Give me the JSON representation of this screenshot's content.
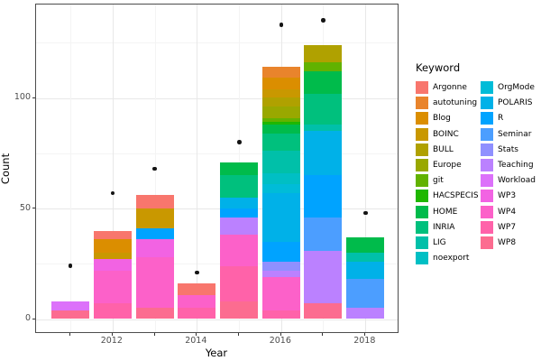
{
  "legend": {
    "title": "Keyword",
    "columns": [
      [
        "Argonne",
        "autotuning",
        "Blog",
        "BOINC",
        "BULL",
        "Europe",
        "git",
        "HACSPECIS",
        "HOME",
        "INRIA",
        "LIG",
        "noexport"
      ],
      [
        "OrgMode",
        "POLARIS",
        "R",
        "Seminar",
        "Stats",
        "Teaching",
        "Workload",
        "WP3",
        "WP4",
        "WP7",
        "WP8"
      ]
    ]
  },
  "colors": {
    "Argonne": "#F8766D",
    "autotuning": "#E9842C",
    "Blog": "#DB8E00",
    "BOINC": "#C99800",
    "BULL": "#B0A100",
    "Europe": "#99A800",
    "git": "#62B200",
    "HACSPECIS": "#1FB700",
    "HOME": "#00BB4B",
    "INRIA": "#00C07D",
    "LIG": "#00C0A9",
    "noexport": "#00BFC4",
    "OrgMode": "#00BCD8",
    "POLARIS": "#00B1E8",
    "R": "#00A3FF",
    "Seminar": "#4C9EFF",
    "Stats": "#8F90FF",
    "Teaching": "#BB81FF",
    "Workload": "#DC71FA",
    "WP3": "#F263E3",
    "WP4": "#FC61C9",
    "WP7": "#FF62A9",
    "WP8": "#FC6C90"
  },
  "chart_data": {
    "type": "bar",
    "subtype": "stacked-bars-with-point-overlay",
    "title": "",
    "xlabel": "Year",
    "ylabel": "Count",
    "x_years": [
      2011,
      2012,
      2013,
      2014,
      2015,
      2016,
      2017,
      2018
    ],
    "x_tick_labels": [
      "2012",
      "2014",
      "2016",
      "2018"
    ],
    "y_tick_labels": [
      "0",
      "50",
      "100"
    ],
    "y_major_ticks": [
      0,
      50,
      100
    ],
    "y_minor_ticks": [
      25,
      75,
      125
    ],
    "ylim": [
      0,
      140
    ],
    "grid": true,
    "legend_position": "right",
    "stacks": [
      {
        "year": 2011,
        "total": 8,
        "segments": [
          {
            "keyword": "Workload",
            "value": 4
          },
          {
            "keyword": "WP8",
            "value": 4
          }
        ]
      },
      {
        "year": 2012,
        "total": 40,
        "segments": [
          {
            "keyword": "Argonne",
            "value": 4
          },
          {
            "keyword": "Blog",
            "value": 6
          },
          {
            "keyword": "BOINC",
            "value": 3
          },
          {
            "keyword": "WP3",
            "value": 5
          },
          {
            "keyword": "WP4",
            "value": 15
          },
          {
            "keyword": "WP7",
            "value": 7
          }
        ]
      },
      {
        "year": 2013,
        "total": 56,
        "segments": [
          {
            "keyword": "Argonne",
            "value": 6
          },
          {
            "keyword": "BOINC",
            "value": 9
          },
          {
            "keyword": "R",
            "value": 5
          },
          {
            "keyword": "WP3",
            "value": 8
          },
          {
            "keyword": "WP4",
            "value": 23
          },
          {
            "keyword": "WP8",
            "value": 5
          }
        ]
      },
      {
        "year": 2014,
        "total": 16,
        "segments": [
          {
            "keyword": "Argonne",
            "value": 5
          },
          {
            "keyword": "WP4",
            "value": 6
          },
          {
            "keyword": "WP7",
            "value": 5
          }
        ]
      },
      {
        "year": 2015,
        "total": 71,
        "segments": [
          {
            "keyword": "HOME",
            "value": 6
          },
          {
            "keyword": "INRIA",
            "value": 10
          },
          {
            "keyword": "POLARIS",
            "value": 5
          },
          {
            "keyword": "R",
            "value": 4
          },
          {
            "keyword": "Teaching",
            "value": 8
          },
          {
            "keyword": "WP4",
            "value": 14
          },
          {
            "keyword": "WP7",
            "value": 16
          },
          {
            "keyword": "WP8",
            "value": 8
          }
        ]
      },
      {
        "year": 2016,
        "total": 114,
        "segments": [
          {
            "keyword": "autotuning",
            "value": 5
          },
          {
            "keyword": "Blog",
            "value": 5
          },
          {
            "keyword": "BOINC",
            "value": 4
          },
          {
            "keyword": "BULL",
            "value": 4
          },
          {
            "keyword": "Europe",
            "value": 5
          },
          {
            "keyword": "git",
            "value": 2
          },
          {
            "keyword": "HACSPECIS",
            "value": 1
          },
          {
            "keyword": "HOME",
            "value": 4
          },
          {
            "keyword": "INRIA",
            "value": 8
          },
          {
            "keyword": "LIG",
            "value": 10
          },
          {
            "keyword": "noexport",
            "value": 5
          },
          {
            "keyword": "OrgMode",
            "value": 4
          },
          {
            "keyword": "POLARIS",
            "value": 22
          },
          {
            "keyword": "R",
            "value": 9
          },
          {
            "keyword": "Stats",
            "value": 4
          },
          {
            "keyword": "Teaching",
            "value": 3
          },
          {
            "keyword": "WP4",
            "value": 15
          },
          {
            "keyword": "WP7",
            "value": 4
          }
        ]
      },
      {
        "year": 2017,
        "total": 124,
        "segments": [
          {
            "keyword": "BULL",
            "value": 8
          },
          {
            "keyword": "git",
            "value": 4
          },
          {
            "keyword": "HOME",
            "value": 10
          },
          {
            "keyword": "INRIA",
            "value": 14
          },
          {
            "keyword": "LIG",
            "value": 3
          },
          {
            "keyword": "POLARIS",
            "value": 20
          },
          {
            "keyword": "R",
            "value": 19
          },
          {
            "keyword": "Seminar",
            "value": 15
          },
          {
            "keyword": "Teaching",
            "value": 24
          },
          {
            "keyword": "WP8",
            "value": 7
          }
        ]
      },
      {
        "year": 2018,
        "total": 37,
        "segments": [
          {
            "keyword": "HOME",
            "value": 7
          },
          {
            "keyword": "LIG",
            "value": 4
          },
          {
            "keyword": "POLARIS",
            "value": 8
          },
          {
            "keyword": "Seminar",
            "value": 13
          },
          {
            "keyword": "Teaching",
            "value": 5
          }
        ]
      }
    ],
    "points_series": {
      "name": "point-markers",
      "values": [
        24,
        57,
        68,
        21,
        80,
        133,
        135,
        48
      ]
    }
  }
}
